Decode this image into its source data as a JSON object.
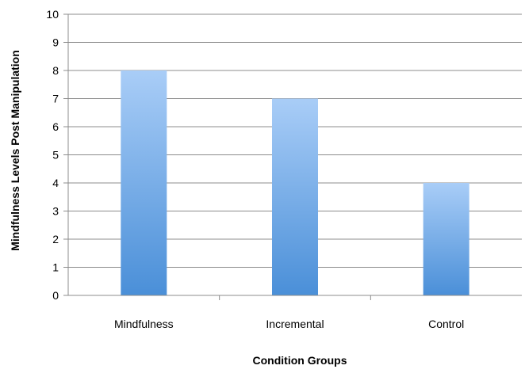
{
  "chart_data": {
    "type": "bar",
    "categories": [
      "Mindfulness",
      "Incremental",
      "Control"
    ],
    "values": [
      8,
      7,
      4
    ],
    "xlabel": "Condition Groups",
    "ylabel": "Mindfulness Levels Post Manipulation",
    "ylim": [
      0,
      10
    ],
    "yticks": [
      "0",
      "1",
      "2",
      "3",
      "4",
      "5",
      "6",
      "7",
      "8",
      "9",
      "10"
    ],
    "grid": true,
    "legend": "none",
    "colors": {
      "bar_top": "#a9cdf7",
      "bar_bottom": "#4a8fd8",
      "grid": "#8c8c8c",
      "axis": "#8c8c8c"
    }
  }
}
